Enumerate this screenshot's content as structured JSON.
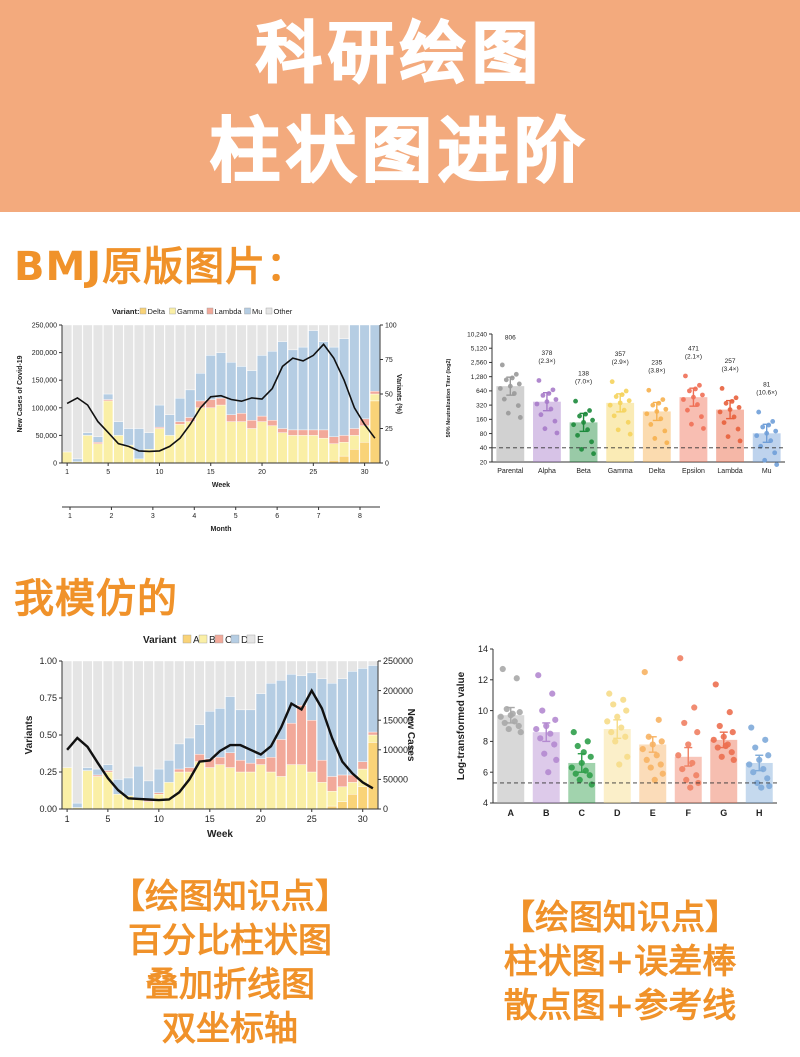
{
  "header": {
    "line1": "科研绘图",
    "line2": "柱状图进阶"
  },
  "sections": {
    "original": "BMJ原版图片：",
    "imitation": "我模仿的"
  },
  "knowledge_left": {
    "title": "【绘图知识点】",
    "lines": [
      "百分比柱状图",
      "叠加折线图",
      "双坐标轴"
    ]
  },
  "knowledge_right": {
    "title": "【绘图知识点】",
    "lines": [
      "柱状图+误差棒",
      "散点图+参考线"
    ]
  },
  "colors": {
    "banner": "#f3aa7d",
    "accent": "#f0922a",
    "v1": "#f9d378",
    "v2": "#faefa6",
    "v3": "#f2a99a",
    "v4": "#b5cde3",
    "v5": "#e5e5e5"
  },
  "chart_data": [
    {
      "type": "bar",
      "subtype": "stacked-percent-with-line",
      "legend_title": "Variant:",
      "legend": [
        "Delta",
        "Gamma",
        "Lambda",
        "Mu",
        "Other"
      ],
      "xlabel": "Week",
      "xlabel2": "Month",
      "ylabel_left": "New Cases of Covid-19",
      "ylabel_right": "Variants (%)",
      "ylim_left": [
        0,
        250000
      ],
      "ylim_right": [
        0,
        100
      ],
      "yticks_left": [
        "0",
        "50,000",
        "100,000",
        "150,000",
        "200,000",
        "250,000"
      ],
      "yticks_right": [
        "0",
        "25",
        "50",
        "75",
        "100"
      ],
      "xticks": [
        "1",
        "5",
        "10",
        "15",
        "20",
        "25",
        "30"
      ],
      "month_ticks": [
        "1",
        "2",
        "3",
        "4",
        "5",
        "6",
        "7",
        "8"
      ],
      "weeks": [
        1,
        2,
        3,
        4,
        5,
        6,
        7,
        8,
        9,
        10,
        11,
        12,
        13,
        14,
        15,
        16,
        17,
        18,
        19,
        20,
        21,
        22,
        23,
        24,
        25,
        26,
        27,
        28,
        29,
        30,
        31
      ],
      "series": [
        {
          "name": "Delta",
          "values": [
            0,
            0,
            0,
            0,
            0,
            0,
            0,
            0,
            0,
            0,
            0,
            0,
            0,
            0,
            0,
            0,
            0,
            0,
            0,
            0,
            0,
            0,
            0,
            0,
            0,
            0,
            2,
            5,
            10,
            15,
            45
          ]
        },
        {
          "name": "Gamma",
          "values": [
            8,
            1,
            20,
            14,
            45,
            20,
            13,
            3,
            10,
            25,
            20,
            28,
            30,
            40,
            40,
            42,
            30,
            30,
            25,
            30,
            27,
            22,
            20,
            20,
            20,
            18,
            12,
            10,
            10,
            12,
            5
          ]
        },
        {
          "name": "Lambda",
          "values": [
            0,
            0,
            0,
            1,
            1,
            0,
            0,
            0,
            0,
            1,
            0,
            2,
            3,
            5,
            6,
            5,
            5,
            6,
            6,
            4,
            4,
            3,
            4,
            4,
            4,
            6,
            5,
            5,
            5,
            5,
            2
          ]
        },
        {
          "name": "Mu",
          "values": [
            0,
            2,
            2,
            4,
            4,
            10,
            12,
            22,
            12,
            16,
            15,
            17,
            20,
            20,
            32,
            33,
            38,
            34,
            36,
            44,
            50,
            63,
            58,
            60,
            72,
            64,
            65,
            70,
            75,
            68,
            48
          ]
        },
        {
          "name": "Other",
          "values": [
            92,
            97,
            78,
            81,
            50,
            70,
            75,
            75,
            78,
            58,
            65,
            53,
            47,
            35,
            22,
            20,
            27,
            30,
            33,
            22,
            19,
            12,
            18,
            16,
            4,
            12,
            16,
            10,
            0,
            0,
            0
          ]
        }
      ],
      "line": {
        "name": "New Cases of Covid-19",
        "values": [
          108000,
          118000,
          105000,
          75000,
          55000,
          35000,
          30000,
          22000,
          21000,
          22000,
          30000,
          45000,
          70000,
          100000,
          120000,
          122000,
          115000,
          112000,
          118000,
          116000,
          135000,
          175000,
          190000,
          185000,
          195000,
          215000,
          190000,
          150000,
          100000,
          70000,
          45000
        ]
      }
    },
    {
      "type": "bar",
      "subtype": "bar-errorbar-scatter",
      "categories": [
        "Parental",
        "Alpha",
        "Beta",
        "Gamma",
        "Delta",
        "Epsilon",
        "Lambda",
        "Mu"
      ],
      "ylabel": "50% Neutralization Titer (log2)",
      "yticks": [
        "20",
        "40",
        "80",
        "160",
        "320",
        "640",
        "1,280",
        "2,560",
        "5,120",
        "10,240"
      ],
      "reference_line": 40,
      "values": [
        806,
        378,
        138,
        357,
        235,
        471,
        257,
        81
      ],
      "labels": [
        "806",
        "378",
        "138",
        "357",
        "235",
        "471",
        "257",
        "81"
      ],
      "fold": [
        "",
        "(2.3×)",
        "(7.0×)",
        "(2.9×)",
        "(3.8×)",
        "(2.1×)",
        "(3.4×)",
        "(10.6×)"
      ],
      "colors": [
        "#999999",
        "#a77bc9",
        "#1c8a3b",
        "#f5d35c",
        "#f6b04e",
        "#ef6f55",
        "#e8603c",
        "#6f9ed8"
      ]
    },
    {
      "type": "bar",
      "subtype": "stacked-percent-with-line",
      "legend_title": "Variant",
      "legend": [
        "A",
        "B",
        "C",
        "D",
        "E"
      ],
      "xlabel": "Week",
      "ylabel_left": "Variants",
      "ylabel_right": "New Cases",
      "ylim_left": [
        0,
        1
      ],
      "ylim_right": [
        0,
        250000
      ],
      "yticks_left": [
        "0.00",
        "0.25",
        "0.50",
        "0.75",
        "1.00"
      ],
      "yticks_right": [
        "0",
        "50000",
        "100000",
        "150000",
        "200000",
        "250000"
      ],
      "xticks": [
        "1",
        "5",
        "10",
        "15",
        "20",
        "25",
        "30"
      ],
      "weeks": [
        1,
        2,
        3,
        4,
        5,
        6,
        7,
        8,
        9,
        10,
        11,
        12,
        13,
        14,
        15,
        16,
        17,
        18,
        19,
        20,
        21,
        22,
        23,
        24,
        25,
        26,
        27,
        28,
        29,
        30,
        31
      ],
      "series": [
        {
          "name": "A",
          "values": [
            0,
            0,
            0,
            0,
            0,
            0,
            0,
            0,
            0,
            0,
            0,
            0,
            0,
            0,
            0,
            0,
            0,
            0,
            0,
            0,
            0,
            0,
            0,
            0,
            0,
            0,
            0.02,
            0.05,
            0.1,
            0.15,
            0.45
          ]
        },
        {
          "name": "B",
          "values": [
            0.28,
            0.01,
            0.26,
            0.22,
            0.25,
            0.1,
            0.09,
            0.07,
            0.05,
            0.1,
            0.18,
            0.25,
            0.25,
            0.32,
            0.28,
            0.3,
            0.28,
            0.25,
            0.25,
            0.3,
            0.25,
            0.22,
            0.3,
            0.3,
            0.25,
            0.18,
            0.1,
            0.1,
            0.08,
            0.12,
            0.05
          ]
        },
        {
          "name": "C",
          "values": [
            0,
            0,
            0,
            0.01,
            0.01,
            0,
            0,
            0,
            0.02,
            0.01,
            0,
            0.02,
            0.03,
            0.05,
            0.06,
            0.05,
            0.1,
            0.08,
            0.06,
            0.04,
            0.1,
            0.25,
            0.28,
            0.4,
            0.35,
            0.15,
            0.1,
            0.08,
            0.05,
            0.05,
            0.02
          ]
        },
        {
          "name": "D",
          "values": [
            0,
            0.03,
            0.02,
            0.04,
            0.04,
            0.1,
            0.12,
            0.22,
            0.12,
            0.16,
            0.15,
            0.17,
            0.2,
            0.2,
            0.32,
            0.33,
            0.38,
            0.34,
            0.36,
            0.44,
            0.5,
            0.4,
            0.33,
            0.2,
            0.32,
            0.55,
            0.63,
            0.65,
            0.7,
            0.63,
            0.45
          ]
        },
        {
          "name": "E",
          "values": [
            0.72,
            0.96,
            0.72,
            0.73,
            0.7,
            0.8,
            0.79,
            0.71,
            0.81,
            0.73,
            0.67,
            0.56,
            0.52,
            0.43,
            0.34,
            0.32,
            0.24,
            0.33,
            0.33,
            0.22,
            0.15,
            0.13,
            0.09,
            0.1,
            0.08,
            0.12,
            0.15,
            0.12,
            0.07,
            0.05,
            0.03
          ]
        }
      ],
      "line": {
        "name": "New Cases",
        "values": [
          100000,
          120000,
          105000,
          78000,
          52000,
          32000,
          18000,
          17000,
          16000,
          15000,
          16000,
          28000,
          50000,
          80000,
          82000,
          98000,
          108000,
          108000,
          100000,
          92000,
          106000,
          138000,
          178000,
          168000,
          200000,
          170000,
          120000,
          80000,
          60000,
          45000,
          35000
        ]
      }
    },
    {
      "type": "bar",
      "subtype": "bar-errorbar-scatter",
      "categories": [
        "A",
        "B",
        "C",
        "D",
        "E",
        "F",
        "G",
        "H"
      ],
      "ylabel": "Log-transformed value",
      "ylim": [
        4,
        14
      ],
      "yticks": [
        "4",
        "6",
        "8",
        "10",
        "12",
        "14"
      ],
      "reference_line": 5.3,
      "values": [
        9.7,
        8.6,
        6.6,
        8.8,
        7.8,
        7.0,
        8.1,
        6.6
      ],
      "errors": [
        0.5,
        0.6,
        0.6,
        0.6,
        0.5,
        0.6,
        0.5,
        0.5
      ],
      "colors": [
        "#a8a8a8",
        "#b48ad0",
        "#2f9e4a",
        "#f6dc88",
        "#f7b263",
        "#ef7f63",
        "#ec6f50",
        "#7eaad9"
      ],
      "points": [
        [
          12.7,
          12.1,
          10.1,
          9.9,
          9.7,
          9.6,
          9.3,
          9.2,
          9.0,
          8.8,
          8.6,
          9.8
        ],
        [
          12.3,
          11.1,
          10.0,
          9.4,
          9.0,
          8.8,
          8.5,
          8.2,
          7.8,
          7.2,
          6.8,
          6.0
        ],
        [
          8.6,
          8.0,
          7.7,
          7.0,
          6.6,
          6.3,
          6.1,
          5.9,
          5.8,
          5.5,
          5.2,
          7.3
        ],
        [
          11.1,
          10.7,
          10.4,
          10.0,
          9.6,
          9.3,
          8.9,
          8.6,
          8.3,
          8.0,
          7.0,
          6.5
        ],
        [
          12.5,
          9.4,
          8.3,
          8.0,
          7.8,
          7.5,
          7.1,
          6.8,
          6.5,
          6.3,
          5.9,
          5.5
        ],
        [
          13.4,
          10.2,
          9.2,
          8.6,
          7.8,
          7.1,
          6.6,
          6.2,
          5.8,
          5.5,
          5.3,
          5.0
        ],
        [
          11.7,
          9.9,
          9.0,
          8.6,
          8.3,
          8.1,
          7.8,
          7.6,
          7.3,
          7.0,
          6.8,
          7.7
        ],
        [
          8.9,
          8.1,
          7.6,
          7.1,
          6.8,
          6.5,
          6.2,
          6.0,
          5.6,
          5.3,
          5.1,
          5.0
        ]
      ]
    }
  ]
}
